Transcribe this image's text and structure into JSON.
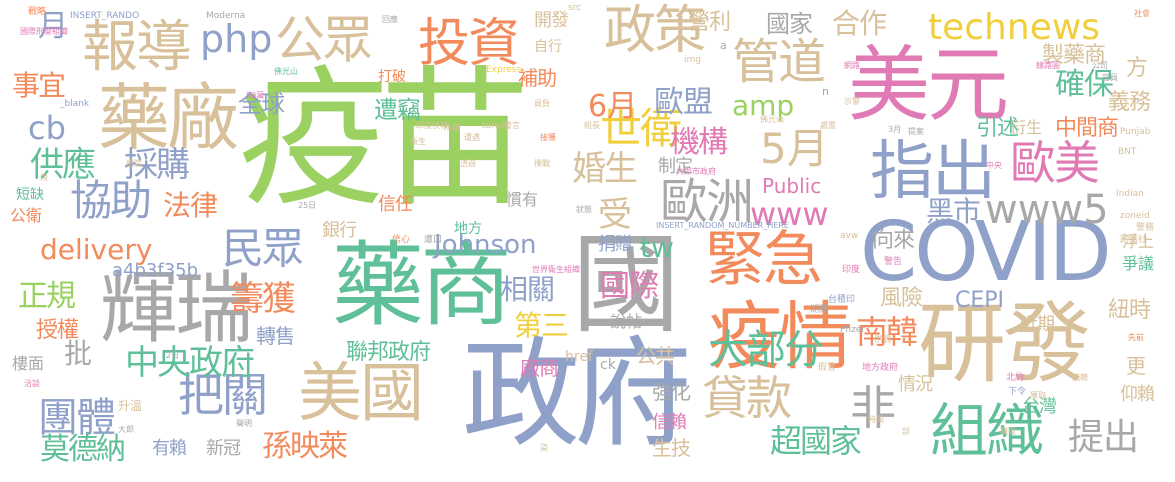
{
  "colors": {
    "green": "#9bd160",
    "blue": "#8fa1c9",
    "orange": "#f28a5b",
    "pink": "#e07ab5",
    "tan": "#d8c09a",
    "teal": "#5fbf99",
    "gray": "#a8a8a8",
    "yellow": "#f1cf3c"
  },
  "words": [
    {
      "text": "疫苗",
      "color": "green"
    },
    {
      "text": "政府",
      "color": "blue"
    },
    {
      "text": "國",
      "color": "gray"
    },
    {
      "text": "藥商",
      "color": "teal"
    },
    {
      "text": "COVID",
      "color": "blue"
    },
    {
      "text": "研發",
      "color": "tan"
    },
    {
      "text": "美元",
      "color": "pink"
    },
    {
      "text": "輝瑞",
      "color": "gray"
    },
    {
      "text": "疫情",
      "color": "orange"
    },
    {
      "text": "藥廠",
      "color": "tan"
    },
    {
      "text": "緊急",
      "color": "orange"
    },
    {
      "text": "美國",
      "color": "tan"
    },
    {
      "text": "組織",
      "color": "teal"
    },
    {
      "text": "指出",
      "color": "blue"
    },
    {
      "text": "報導",
      "color": "tan"
    },
    {
      "text": "投資",
      "color": "orange"
    },
    {
      "text": "政策",
      "color": "tan"
    },
    {
      "text": "公眾",
      "color": "tan"
    },
    {
      "text": "technews",
      "color": "yellow"
    },
    {
      "text": "管道",
      "color": "tan"
    },
    {
      "text": "歐洲",
      "color": "gray"
    },
    {
      "text": "歐美",
      "color": "pink"
    },
    {
      "text": "貸款",
      "color": "tan"
    },
    {
      "text": "把關",
      "color": "blue"
    },
    {
      "text": "民眾",
      "color": "blue"
    },
    {
      "text": "協助",
      "color": "blue"
    },
    {
      "text": "www5",
      "color": "gray"
    },
    {
      "text": "php",
      "color": "blue"
    },
    {
      "text": "世衛",
      "color": "yellow"
    },
    {
      "text": "5月",
      "color": "tan"
    },
    {
      "text": "非",
      "color": "gray"
    },
    {
      "text": "大部分",
      "color": "teal"
    },
    {
      "text": "團體",
      "color": "blue"
    },
    {
      "text": "中央政府",
      "color": "teal"
    },
    {
      "text": "提出",
      "color": "gray"
    },
    {
      "text": "確保",
      "color": "teal"
    },
    {
      "text": "供應",
      "color": "teal"
    },
    {
      "text": "採購",
      "color": "blue"
    },
    {
      "text": "www",
      "color": "pink"
    },
    {
      "text": "delivery",
      "color": "orange"
    },
    {
      "text": "Johnson",
      "color": "blue"
    },
    {
      "text": "籌獲",
      "color": "orange"
    },
    {
      "text": "南韓",
      "color": "orange"
    },
    {
      "text": "超國家",
      "color": "teal"
    },
    {
      "text": "國際",
      "color": "pink"
    },
    {
      "text": "莫德納",
      "color": "teal"
    },
    {
      "text": "孫映萊",
      "color": "orange"
    },
    {
      "text": "機構",
      "color": "pink"
    },
    {
      "text": "6月",
      "color": "orange"
    },
    {
      "text": "歐盟",
      "color": "blue"
    },
    {
      "text": "amp",
      "color": "green"
    },
    {
      "text": "婚生",
      "color": "tan"
    },
    {
      "text": "cb",
      "color": "blue"
    },
    {
      "text": "事宜",
      "color": "orange"
    },
    {
      "text": "法律",
      "color": "orange"
    },
    {
      "text": "正規",
      "color": "green"
    },
    {
      "text": "合作",
      "color": "tan"
    },
    {
      "text": "tw",
      "color": "teal"
    },
    {
      "text": "第三",
      "color": "yellow"
    },
    {
      "text": "相關",
      "color": "blue"
    },
    {
      "text": "黑市",
      "color": "blue"
    },
    {
      "text": "CEPI",
      "color": "blue"
    },
    {
      "text": "全球",
      "color": "blue"
    },
    {
      "text": "遭竊",
      "color": "teal"
    },
    {
      "text": "月",
      "color": "blue"
    },
    {
      "text": "國家",
      "color": "gray"
    },
    {
      "text": "營利",
      "color": "tan"
    },
    {
      "text": "製藥商",
      "color": "tan"
    },
    {
      "text": "中間商",
      "color": "orange"
    },
    {
      "text": "受",
      "color": "tan"
    },
    {
      "text": "聯邦政府",
      "color": "teal"
    },
    {
      "text": "風險",
      "color": "tan"
    },
    {
      "text": "紐時",
      "color": "tan"
    },
    {
      "text": "向來",
      "color": "gray"
    },
    {
      "text": "引述",
      "color": "teal"
    },
    {
      "text": "義務",
      "color": "tan"
    },
    {
      "text": "方",
      "color": "tan"
    },
    {
      "text": "補助",
      "color": "orange"
    },
    {
      "text": "開發",
      "color": "tan"
    },
    {
      "text": "轉售",
      "color": "blue"
    },
    {
      "text": "授權",
      "color": "orange"
    },
    {
      "text": "批",
      "color": "gray"
    },
    {
      "text": "強化",
      "color": "gray"
    },
    {
      "text": "廠商",
      "color": "pink"
    },
    {
      "text": "公共",
      "color": "tan"
    },
    {
      "text": "情況",
      "color": "tan"
    },
    {
      "text": "生技",
      "color": "tan"
    },
    {
      "text": "信賴",
      "color": "pink"
    },
    {
      "text": "有賴",
      "color": "blue"
    },
    {
      "text": "新冠",
      "color": "gray"
    },
    {
      "text": "Public",
      "color": "pink"
    },
    {
      "text": "捐贈",
      "color": "blue"
    },
    {
      "text": "制定",
      "color": "gray"
    },
    {
      "text": "銀行",
      "color": "tan"
    },
    {
      "text": "信任",
      "color": "orange"
    },
    {
      "text": "地方",
      "color": "teal"
    },
    {
      "text": "慣有",
      "color": "gray"
    },
    {
      "text": "a4b3f35b",
      "color": "blue"
    },
    {
      "text": "說帖",
      "color": "gray"
    },
    {
      "text": "近期",
      "color": "tan"
    },
    {
      "text": "更",
      "color": "tan"
    },
    {
      "text": "台灣",
      "color": "teal"
    },
    {
      "text": "仰賴",
      "color": "tan"
    },
    {
      "text": "浮上",
      "color": "tan"
    },
    {
      "text": "爭議",
      "color": "teal"
    },
    {
      "text": "公衛",
      "color": "orange"
    },
    {
      "text": "短缺",
      "color": "teal"
    },
    {
      "text": "衍生",
      "color": "tan"
    },
    {
      "text": "打破",
      "color": "orange"
    },
    {
      "text": "自行",
      "color": "tan"
    },
    {
      "text": "升溫",
      "color": "tan"
    },
    {
      "text": "href",
      "color": "tan"
    },
    {
      "text": "ck",
      "color": "gray"
    },
    {
      "text": "樓面",
      "color": "gray"
    },
    {
      "text": "INSERT_RANDO",
      "color": "blue"
    },
    {
      "text": "Moderna",
      "color": "gray"
    },
    {
      "text": "國際刑警組織",
      "color": "pink"
    },
    {
      "text": "INSERT_RANDOM_NUMBER_HERE",
      "color": "blue"
    },
    {
      "text": "Express",
      "color": "yellow"
    },
    {
      "text": "_blank",
      "color": "blue"
    },
    {
      "text": "target",
      "color": "tan"
    },
    {
      "text": "img",
      "color": "tan"
    },
    {
      "text": "zoneid",
      "color": "tan"
    },
    {
      "text": "Indian",
      "color": "tan"
    },
    {
      "text": "Pfizer",
      "color": "gray"
    },
    {
      "text": "avw",
      "color": "tan"
    },
    {
      "text": "BNT",
      "color": "tan"
    },
    {
      "text": "Punjab",
      "color": "tan"
    },
    {
      "text": "戰略",
      "color": "orange"
    },
    {
      "text": "信心",
      "color": "orange"
    },
    {
      "text": "遭口",
      "color": "gray"
    },
    {
      "text": "印度",
      "color": "pink"
    },
    {
      "text": "警告",
      "color": "pink"
    },
    {
      "text": "地方政府",
      "color": "pink"
    },
    {
      "text": "北約",
      "color": "pink"
    },
    {
      "text": "下令",
      "color": "blue"
    },
    {
      "text": "警務",
      "color": "tan"
    },
    {
      "text": "路透社",
      "color": "tan"
    },
    {
      "text": "假冒",
      "color": "tan"
    },
    {
      "text": "台積印",
      "color": "blue"
    },
    {
      "text": "供貨",
      "color": "tan"
    },
    {
      "text": "相當",
      "color": "tan"
    },
    {
      "text": "期間",
      "color": "gray"
    },
    {
      "text": "src",
      "color": "tan"
    },
    {
      "text": "a",
      "color": "gray"
    },
    {
      "text": "n",
      "color": "gray"
    },
    {
      "text": "回應",
      "color": "gray"
    },
    {
      "text": "網路",
      "color": "pink"
    },
    {
      "text": "線路圖",
      "color": "pink"
    },
    {
      "text": "公司",
      "color": "gray"
    },
    {
      "text": "官員",
      "color": "gray"
    },
    {
      "text": "佛光山",
      "color": "teal"
    },
    {
      "text": "世界衛生組織",
      "color": "pink"
    },
    {
      "text": "大郎市政府",
      "color": "pink"
    },
    {
      "text": "中央",
      "color": "pink"
    },
    {
      "text": "先前",
      "color": "orange"
    },
    {
      "text": "社會",
      "color": "orange"
    },
    {
      "text": "購賴",
      "color": "tan"
    },
    {
      "text": "獲取",
      "color": "tan"
    },
    {
      "text": "時間",
      "color": "tan"
    },
    {
      "text": "聲明",
      "color": "gray"
    },
    {
      "text": "大郎",
      "color": "gray"
    },
    {
      "text": "25日",
      "color": "gray"
    },
    {
      "text": "2日",
      "color": "gray"
    },
    {
      "text": "50萬",
      "color": "pink"
    },
    {
      "text": "3月",
      "color": "gray"
    },
    {
      "text": "洽談",
      "color": "pink"
    },
    {
      "text": "提案",
      "color": "gray"
    },
    {
      "text": "接獲",
      "color": "orange"
    },
    {
      "text": "狀態",
      "color": "gray"
    },
    {
      "text": "遭遇",
      "color": "tan"
    },
    {
      "text": "所屬",
      "color": "tan"
    },
    {
      "text": "印度快報",
      "color": "tan"
    },
    {
      "text": "發言",
      "color": "tan"
    },
    {
      "text": "組長",
      "color": "tan"
    },
    {
      "text": "處置",
      "color": "tan"
    },
    {
      "text": "員負",
      "color": "tan"
    },
    {
      "text": "佛光山",
      "color": "tan"
    },
    {
      "text": "撲戰",
      "color": "tan"
    },
    {
      "text": "透過",
      "color": "tan"
    },
    {
      "text": "購買",
      "color": "tan"
    },
    {
      "text": "盜",
      "color": "tan"
    },
    {
      "text": "部",
      "color": "tan"
    },
    {
      "text": "衛生",
      "color": "tan"
    },
    {
      "text": "段",
      "color": "tan"
    },
    {
      "text": "示警",
      "color": "tan"
    }
  ]
}
